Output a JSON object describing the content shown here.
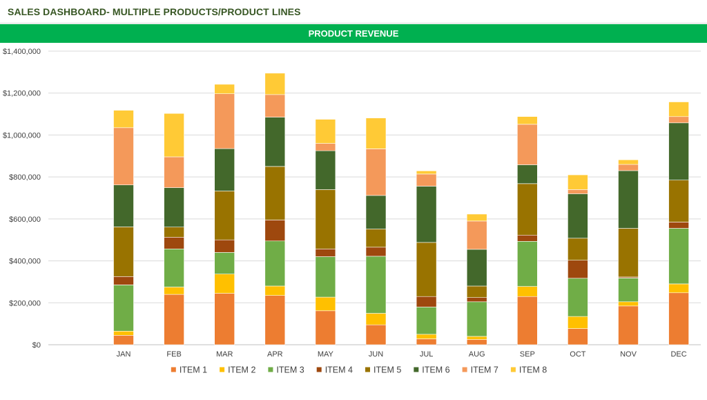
{
  "header": {
    "title": "SALES DASHBOARD- MULTIPLE PRODUCTS/PRODUCT LINES"
  },
  "colors": {
    "banner": "#00b050",
    "title": "#375623"
  },
  "chart_data": {
    "type": "bar",
    "stacked": true,
    "title": "PRODUCT REVENUE",
    "xlabel": "",
    "ylabel": "",
    "ylim": [
      0,
      1400000
    ],
    "yticks": [
      0,
      200000,
      400000,
      600000,
      800000,
      1000000,
      1200000,
      1400000
    ],
    "ytick_labels": [
      "$0",
      "$200,000",
      "$400,000",
      "$600,000",
      "$800,000",
      "$1,000,000",
      "$1,200,000",
      "$1,400,000"
    ],
    "grid": true,
    "legend": "bottom",
    "categories": [
      "JAN",
      "FEB",
      "MAR",
      "APR",
      "MAY",
      "JUN",
      "JUL",
      "AUG",
      "SEP",
      "OCT",
      "NOV",
      "DEC"
    ],
    "series": [
      {
        "name": "ITEM 1",
        "color": "#ed7d31",
        "values": [
          45000,
          240000,
          245000,
          235000,
          162000,
          95000,
          28000,
          25000,
          230000,
          77000,
          185000,
          248000
        ]
      },
      {
        "name": "ITEM 2",
        "color": "#ffc000",
        "values": [
          20000,
          35000,
          92000,
          45000,
          65000,
          55000,
          22000,
          15000,
          48000,
          58000,
          20000,
          42000
        ]
      },
      {
        "name": "ITEM 3",
        "color": "#70ad47",
        "values": [
          220000,
          182000,
          103000,
          215000,
          193000,
          272000,
          130000,
          165000,
          215000,
          182000,
          113000,
          265000
        ]
      },
      {
        "name": "ITEM 4",
        "color": "#9e480e",
        "values": [
          40000,
          56000,
          60000,
          100000,
          37000,
          43000,
          50000,
          20000,
          30000,
          86000,
          5000,
          30000
        ]
      },
      {
        "name": "ITEM 5",
        "color": "#997300",
        "values": [
          237000,
          48000,
          233000,
          255000,
          283000,
          87000,
          258000,
          55000,
          245000,
          105000,
          232000,
          200000
        ]
      },
      {
        "name": "ITEM 6",
        "color": "#43682b",
        "values": [
          200000,
          188000,
          202000,
          235000,
          185000,
          160000,
          268000,
          175000,
          90000,
          212000,
          275000,
          273000
        ]
      },
      {
        "name": "ITEM 7",
        "color": "#f4995a",
        "values": [
          273000,
          147000,
          262000,
          108000,
          35000,
          222000,
          58000,
          135000,
          193000,
          20000,
          30000,
          30000
        ]
      },
      {
        "name": "ITEM 8",
        "color": "#ffca36",
        "values": [
          83000,
          207000,
          45000,
          102000,
          115000,
          147000,
          15000,
          33000,
          37000,
          70000,
          22000,
          70000
        ]
      }
    ]
  }
}
